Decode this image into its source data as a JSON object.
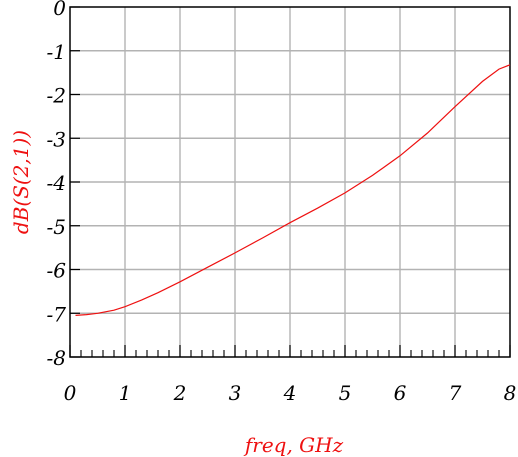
{
  "chart_data": {
    "type": "line",
    "xlabel": "freq, GHz",
    "ylabel": "dB(S(2,1))",
    "xlim": [
      0,
      8
    ],
    "ylim": [
      -8,
      0
    ],
    "x_ticks": [
      "0",
      "1",
      "2",
      "3",
      "4",
      "5",
      "6",
      "7",
      "8"
    ],
    "y_ticks": [
      "0",
      "-1",
      "-2",
      "-3",
      "-4",
      "-5",
      "-6",
      "-7",
      "-8"
    ],
    "grid": true,
    "line_color": "#ee1111",
    "series": [
      {
        "x": [
          0.1,
          0.3,
          0.5,
          0.8,
          1.0,
          1.3,
          1.6,
          2.0,
          2.5,
          3.0,
          3.5,
          4.0,
          4.5,
          5.0,
          5.5,
          6.0,
          6.5,
          7.0,
          7.5,
          7.8,
          8.0
        ],
        "y": [
          -7.05,
          -7.03,
          -7.0,
          -6.93,
          -6.85,
          -6.7,
          -6.53,
          -6.28,
          -5.95,
          -5.62,
          -5.28,
          -4.93,
          -4.6,
          -4.25,
          -3.85,
          -3.4,
          -2.88,
          -2.28,
          -1.7,
          -1.42,
          -1.32
        ]
      }
    ]
  }
}
